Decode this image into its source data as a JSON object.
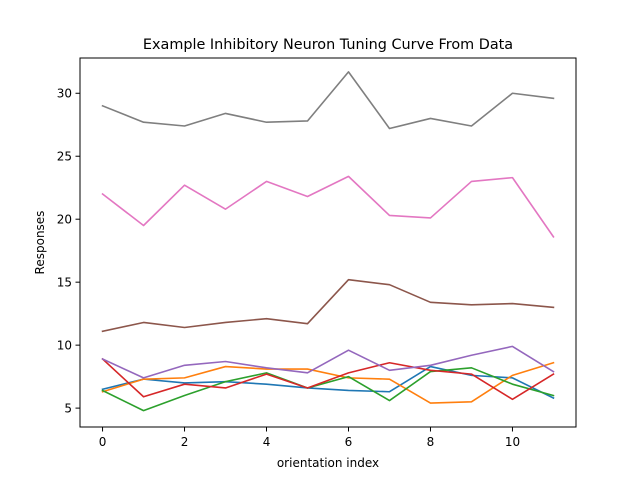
{
  "chart_data": {
    "type": "line",
    "title": "Example Inhibitory Neuron Tuning Curve From Data",
    "xlabel": "orientation index",
    "ylabel": "Responses",
    "xlim": [
      -0.55,
      11.55
    ],
    "ylim": [
      3.5,
      32.8
    ],
    "xticks": [
      0,
      2,
      4,
      6,
      8,
      10
    ],
    "yticks": [
      5,
      10,
      15,
      20,
      25,
      30
    ],
    "grid": false,
    "x": [
      0,
      1,
      2,
      3,
      4,
      5,
      6,
      7,
      8,
      9,
      10,
      11
    ],
    "series": [
      {
        "color": "#1f77b4",
        "values": [
          6.5,
          7.3,
          7.0,
          7.1,
          6.9,
          6.6,
          6.4,
          6.3,
          8.3,
          7.6,
          7.4,
          5.8
        ]
      },
      {
        "color": "#ff7f0e",
        "values": [
          6.3,
          7.3,
          7.4,
          8.3,
          8.1,
          8.1,
          7.4,
          7.3,
          5.4,
          5.5,
          7.6,
          8.6
        ]
      },
      {
        "color": "#2ca02c",
        "values": [
          6.4,
          4.8,
          6.0,
          7.1,
          7.8,
          6.6,
          7.5,
          5.6,
          7.9,
          8.2,
          6.9,
          6.0
        ]
      },
      {
        "color": "#d62728",
        "values": [
          8.9,
          5.9,
          6.9,
          6.6,
          7.7,
          6.6,
          7.8,
          8.6,
          8.0,
          7.7,
          5.7,
          7.7
        ]
      },
      {
        "color": "#9467bd",
        "values": [
          8.9,
          7.4,
          8.4,
          8.7,
          8.2,
          7.8,
          9.6,
          8.0,
          8.4,
          9.2,
          9.9,
          7.9
        ]
      },
      {
        "color": "#8c564b",
        "values": [
          11.1,
          11.8,
          11.4,
          11.8,
          12.1,
          11.7,
          15.2,
          14.8,
          13.4,
          13.2,
          13.3,
          13.0
        ]
      },
      {
        "color": "#e377c2",
        "values": [
          22.0,
          19.5,
          22.7,
          20.8,
          23.0,
          21.8,
          23.4,
          20.3,
          20.1,
          23.0,
          23.3,
          18.6
        ]
      },
      {
        "color": "#7f7f7f",
        "values": [
          29.0,
          27.7,
          27.4,
          28.4,
          27.7,
          27.8,
          31.7,
          27.2,
          28.0,
          27.4,
          30.0,
          29.6
        ]
      }
    ]
  }
}
